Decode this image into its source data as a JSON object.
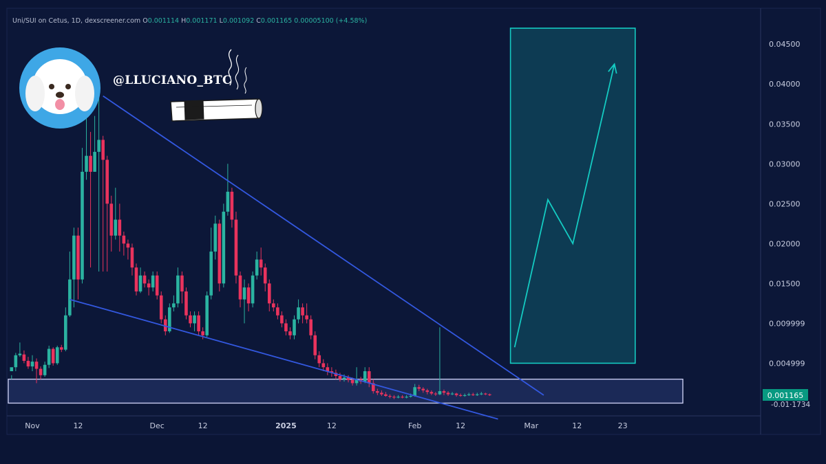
{
  "header": {
    "symbol_line": "Uni/SUI on Cetus, 1D, dexscreener.com",
    "open_label": "O",
    "open": "0.001114",
    "high_label": "H",
    "high": "0.001171",
    "low_label": "L",
    "low": "0.001092",
    "close_label": "C",
    "close": "0.001165",
    "change": "0.00005100 (+4.58%)"
  },
  "author": {
    "handle": "@LLUCIANO_BTC"
  },
  "price_badge": "0.001165",
  "lower_price_label": "-0.01·1734",
  "colors": {
    "background": "#0b1535",
    "up": "#2bb3a1",
    "down": "#e9335d",
    "trendline": "#3358e0",
    "target_box": "#14cbc2",
    "support_box": "#c8ccf0"
  },
  "chart_data": {
    "type": "candlestick",
    "y_axis": {
      "ticks": [
        "0.04500",
        "0.04000",
        "0.03500",
        "0.03000",
        "0.02500",
        "0.02000",
        "0.01500",
        "0.009999",
        "0.004999"
      ],
      "tick_values": [
        0.045,
        0.04,
        0.035,
        0.03,
        0.025,
        0.02,
        0.015,
        0.01,
        0.005
      ],
      "ylim": [
        -0.0016,
        0.0495
      ]
    },
    "x_axis": {
      "labels": [
        "Nov",
        "12",
        "Dec",
        "12",
        "2025",
        "12",
        "Feb",
        "12",
        "Mar",
        "12",
        "23"
      ],
      "label_days": [
        0,
        11,
        30,
        41,
        61,
        72,
        92,
        103,
        120,
        131,
        142
      ]
    },
    "candles_start_day": -5,
    "candles": [
      [
        0.004,
        0.0045,
        0.0035,
        0.003
      ],
      [
        0.0045,
        0.006,
        0.0063,
        0.004
      ],
      [
        0.006,
        0.0062,
        0.0076,
        0.0058
      ],
      [
        0.0061,
        0.0053,
        0.0066,
        0.005
      ],
      [
        0.0053,
        0.0046,
        0.0058,
        0.0043
      ],
      [
        0.0046,
        0.0052,
        0.006,
        0.004
      ],
      [
        0.0052,
        0.0043,
        0.0056,
        0.0025
      ],
      [
        0.0043,
        0.0035,
        0.0046,
        0.003
      ],
      [
        0.0035,
        0.0048,
        0.0052,
        0.0033
      ],
      [
        0.0048,
        0.0068,
        0.0072,
        0.0044
      ],
      [
        0.0068,
        0.005,
        0.007,
        0.0047
      ],
      [
        0.005,
        0.007,
        0.0072,
        0.0048
      ],
      [
        0.007,
        0.0067,
        0.0073,
        0.0064
      ],
      [
        0.0067,
        0.011,
        0.012,
        0.0065
      ],
      [
        0.011,
        0.0155,
        0.019,
        0.0108
      ],
      [
        0.0155,
        0.021,
        0.022,
        0.012
      ],
      [
        0.021,
        0.0155,
        0.022,
        0.013
      ],
      [
        0.0155,
        0.029,
        0.032,
        0.015
      ],
      [
        0.029,
        0.031,
        0.038,
        0.028
      ],
      [
        0.031,
        0.029,
        0.034,
        0.017
      ],
      [
        0.029,
        0.0315,
        0.036,
        0.029
      ],
      [
        0.0315,
        0.033,
        0.039,
        0.0165
      ],
      [
        0.033,
        0.0305,
        0.0335,
        0.0165
      ],
      [
        0.0305,
        0.025,
        0.031,
        0.0165
      ],
      [
        0.025,
        0.021,
        0.026,
        0.019
      ],
      [
        0.021,
        0.023,
        0.027,
        0.0205
      ],
      [
        0.023,
        0.021,
        0.025,
        0.019
      ],
      [
        0.021,
        0.02,
        0.0215,
        0.0185
      ],
      [
        0.02,
        0.0195,
        0.0205,
        0.018
      ],
      [
        0.0195,
        0.017,
        0.02,
        0.016
      ],
      [
        0.017,
        0.014,
        0.0175,
        0.0135
      ],
      [
        0.014,
        0.016,
        0.017,
        0.0138
      ],
      [
        0.016,
        0.015,
        0.0165,
        0.0145
      ],
      [
        0.015,
        0.0145,
        0.0155,
        0.0135
      ],
      [
        0.0145,
        0.016,
        0.0165,
        0.014
      ],
      [
        0.016,
        0.0135,
        0.0165,
        0.013
      ],
      [
        0.0135,
        0.0105,
        0.014,
        0.01
      ],
      [
        0.0105,
        0.009,
        0.011,
        0.0085
      ],
      [
        0.009,
        0.012,
        0.0125,
        0.0088
      ],
      [
        0.012,
        0.0125,
        0.0135,
        0.0115
      ],
      [
        0.0125,
        0.016,
        0.017,
        0.012
      ],
      [
        0.016,
        0.014,
        0.0165,
        0.0125
      ],
      [
        0.014,
        0.011,
        0.0145,
        0.0105
      ],
      [
        0.011,
        0.01,
        0.0115,
        0.0095
      ],
      [
        0.01,
        0.011,
        0.0115,
        0.009
      ],
      [
        0.011,
        0.009,
        0.0115,
        0.0085
      ],
      [
        0.009,
        0.0085,
        0.0095,
        0.008
      ],
      [
        0.0085,
        0.0135,
        0.014,
        0.0083
      ],
      [
        0.0135,
        0.019,
        0.022,
        0.013
      ],
      [
        0.019,
        0.0225,
        0.0235,
        0.018
      ],
      [
        0.0225,
        0.015,
        0.023,
        0.014
      ],
      [
        0.015,
        0.024,
        0.025,
        0.0145
      ],
      [
        0.024,
        0.0265,
        0.03,
        0.0235
      ],
      [
        0.0265,
        0.023,
        0.027,
        0.022
      ],
      [
        0.023,
        0.016,
        0.024,
        0.015
      ],
      [
        0.016,
        0.013,
        0.0165,
        0.012
      ],
      [
        0.013,
        0.0145,
        0.0155,
        0.01
      ],
      [
        0.0145,
        0.0125,
        0.015,
        0.0115
      ],
      [
        0.0125,
        0.016,
        0.0165,
        0.012
      ],
      [
        0.016,
        0.018,
        0.019,
        0.0155
      ],
      [
        0.018,
        0.017,
        0.0195,
        0.016
      ],
      [
        0.017,
        0.015,
        0.0175,
        0.014
      ],
      [
        0.015,
        0.0125,
        0.0155,
        0.0115
      ],
      [
        0.0125,
        0.012,
        0.013,
        0.0115
      ],
      [
        0.012,
        0.011,
        0.0125,
        0.0105
      ],
      [
        0.011,
        0.01,
        0.0115,
        0.0095
      ],
      [
        0.01,
        0.009,
        0.0105,
        0.0085
      ],
      [
        0.009,
        0.0085,
        0.0095,
        0.008
      ],
      [
        0.0085,
        0.0105,
        0.011,
        0.008
      ],
      [
        0.0105,
        0.012,
        0.013,
        0.01
      ],
      [
        0.012,
        0.011,
        0.0125,
        0.01
      ],
      [
        0.011,
        0.0105,
        0.0125,
        0.01
      ],
      [
        0.0105,
        0.0085,
        0.011,
        0.008
      ],
      [
        0.0085,
        0.006,
        0.009,
        0.0055
      ],
      [
        0.006,
        0.005,
        0.0065,
        0.0045
      ],
      [
        0.005,
        0.0045,
        0.0055,
        0.004
      ],
      [
        0.0045,
        0.004,
        0.005,
        0.0035
      ],
      [
        0.004,
        0.0038,
        0.0045,
        0.0033
      ],
      [
        0.0038,
        0.0034,
        0.0042,
        0.003
      ],
      [
        0.0034,
        0.003,
        0.0038,
        0.0027
      ],
      [
        0.003,
        0.0032,
        0.0036,
        0.0027
      ],
      [
        0.0032,
        0.0029,
        0.0035,
        0.0026
      ],
      [
        0.0029,
        0.0025,
        0.0032,
        0.0022
      ],
      [
        0.0025,
        0.003,
        0.0045,
        0.0022
      ],
      [
        0.003,
        0.0027,
        0.0033,
        0.0024
      ],
      [
        0.0027,
        0.004,
        0.0045,
        0.0025
      ],
      [
        0.004,
        0.0025,
        0.0045,
        0.002
      ],
      [
        0.0025,
        0.0015,
        0.003,
        0.0012
      ],
      [
        0.0015,
        0.0013,
        0.0018,
        0.001
      ],
      [
        0.0013,
        0.0011,
        0.0016,
        0.0009
      ],
      [
        0.0011,
        0.0009,
        0.0014,
        0.0008
      ],
      [
        0.0009,
        0.0008,
        0.0011,
        0.0006
      ],
      [
        0.0008,
        0.0007,
        0.001,
        0.0005
      ],
      [
        0.0007,
        0.0008,
        0.001,
        0.0006
      ],
      [
        0.0008,
        0.0007,
        0.001,
        0.0006
      ],
      [
        0.0007,
        0.0008,
        0.001,
        0.0006
      ],
      [
        0.0008,
        0.0009,
        0.0012,
        0.0007
      ],
      [
        0.0009,
        0.002,
        0.0024,
        0.0008
      ],
      [
        0.002,
        0.0018,
        0.0023,
        0.0015
      ],
      [
        0.0018,
        0.0016,
        0.002,
        0.0013
      ],
      [
        0.0016,
        0.0014,
        0.0018,
        0.0011
      ],
      [
        0.0014,
        0.0012,
        0.0016,
        0.001
      ],
      [
        0.0012,
        0.0011,
        0.0014,
        0.0009
      ],
      [
        0.0011,
        0.0015,
        0.0095,
        0.001
      ],
      [
        0.0015,
        0.0013,
        0.0017,
        0.001
      ],
      [
        0.0013,
        0.0011,
        0.0015,
        0.0009
      ],
      [
        0.0011,
        0.0012,
        0.0014,
        0.001
      ],
      [
        0.0012,
        0.001,
        0.0013,
        0.0008
      ],
      [
        0.001,
        0.0009,
        0.0012,
        0.0008
      ],
      [
        0.0009,
        0.001,
        0.0012,
        0.0008
      ],
      [
        0.001,
        0.0011,
        0.0013,
        0.0009
      ],
      [
        0.0011,
        0.001,
        0.0013,
        0.0009
      ],
      [
        0.001,
        0.0011,
        0.0013,
        0.0009
      ],
      [
        0.0011,
        0.0012,
        0.0014,
        0.001
      ],
      [
        0.0012,
        0.0011,
        0.0013,
        0.001
      ],
      [
        0.0011,
        0.001,
        0.0012,
        0.0009
      ]
    ],
    "upper_trendline": [
      [
        17,
        0.0385
      ],
      [
        123,
        0.001
      ]
    ],
    "lower_trendline": [
      [
        9,
        0.013
      ],
      [
        112,
        -0.002
      ]
    ],
    "support_zone": [
      0.0,
      0.003
    ],
    "target_box": {
      "x": [
        115,
        145
      ],
      "y": [
        0.005,
        0.047
      ]
    },
    "projection_arrow": [
      [
        116,
        0.007
      ],
      [
        124,
        0.0255
      ],
      [
        130,
        0.02
      ],
      [
        140,
        0.0425
      ]
    ]
  }
}
